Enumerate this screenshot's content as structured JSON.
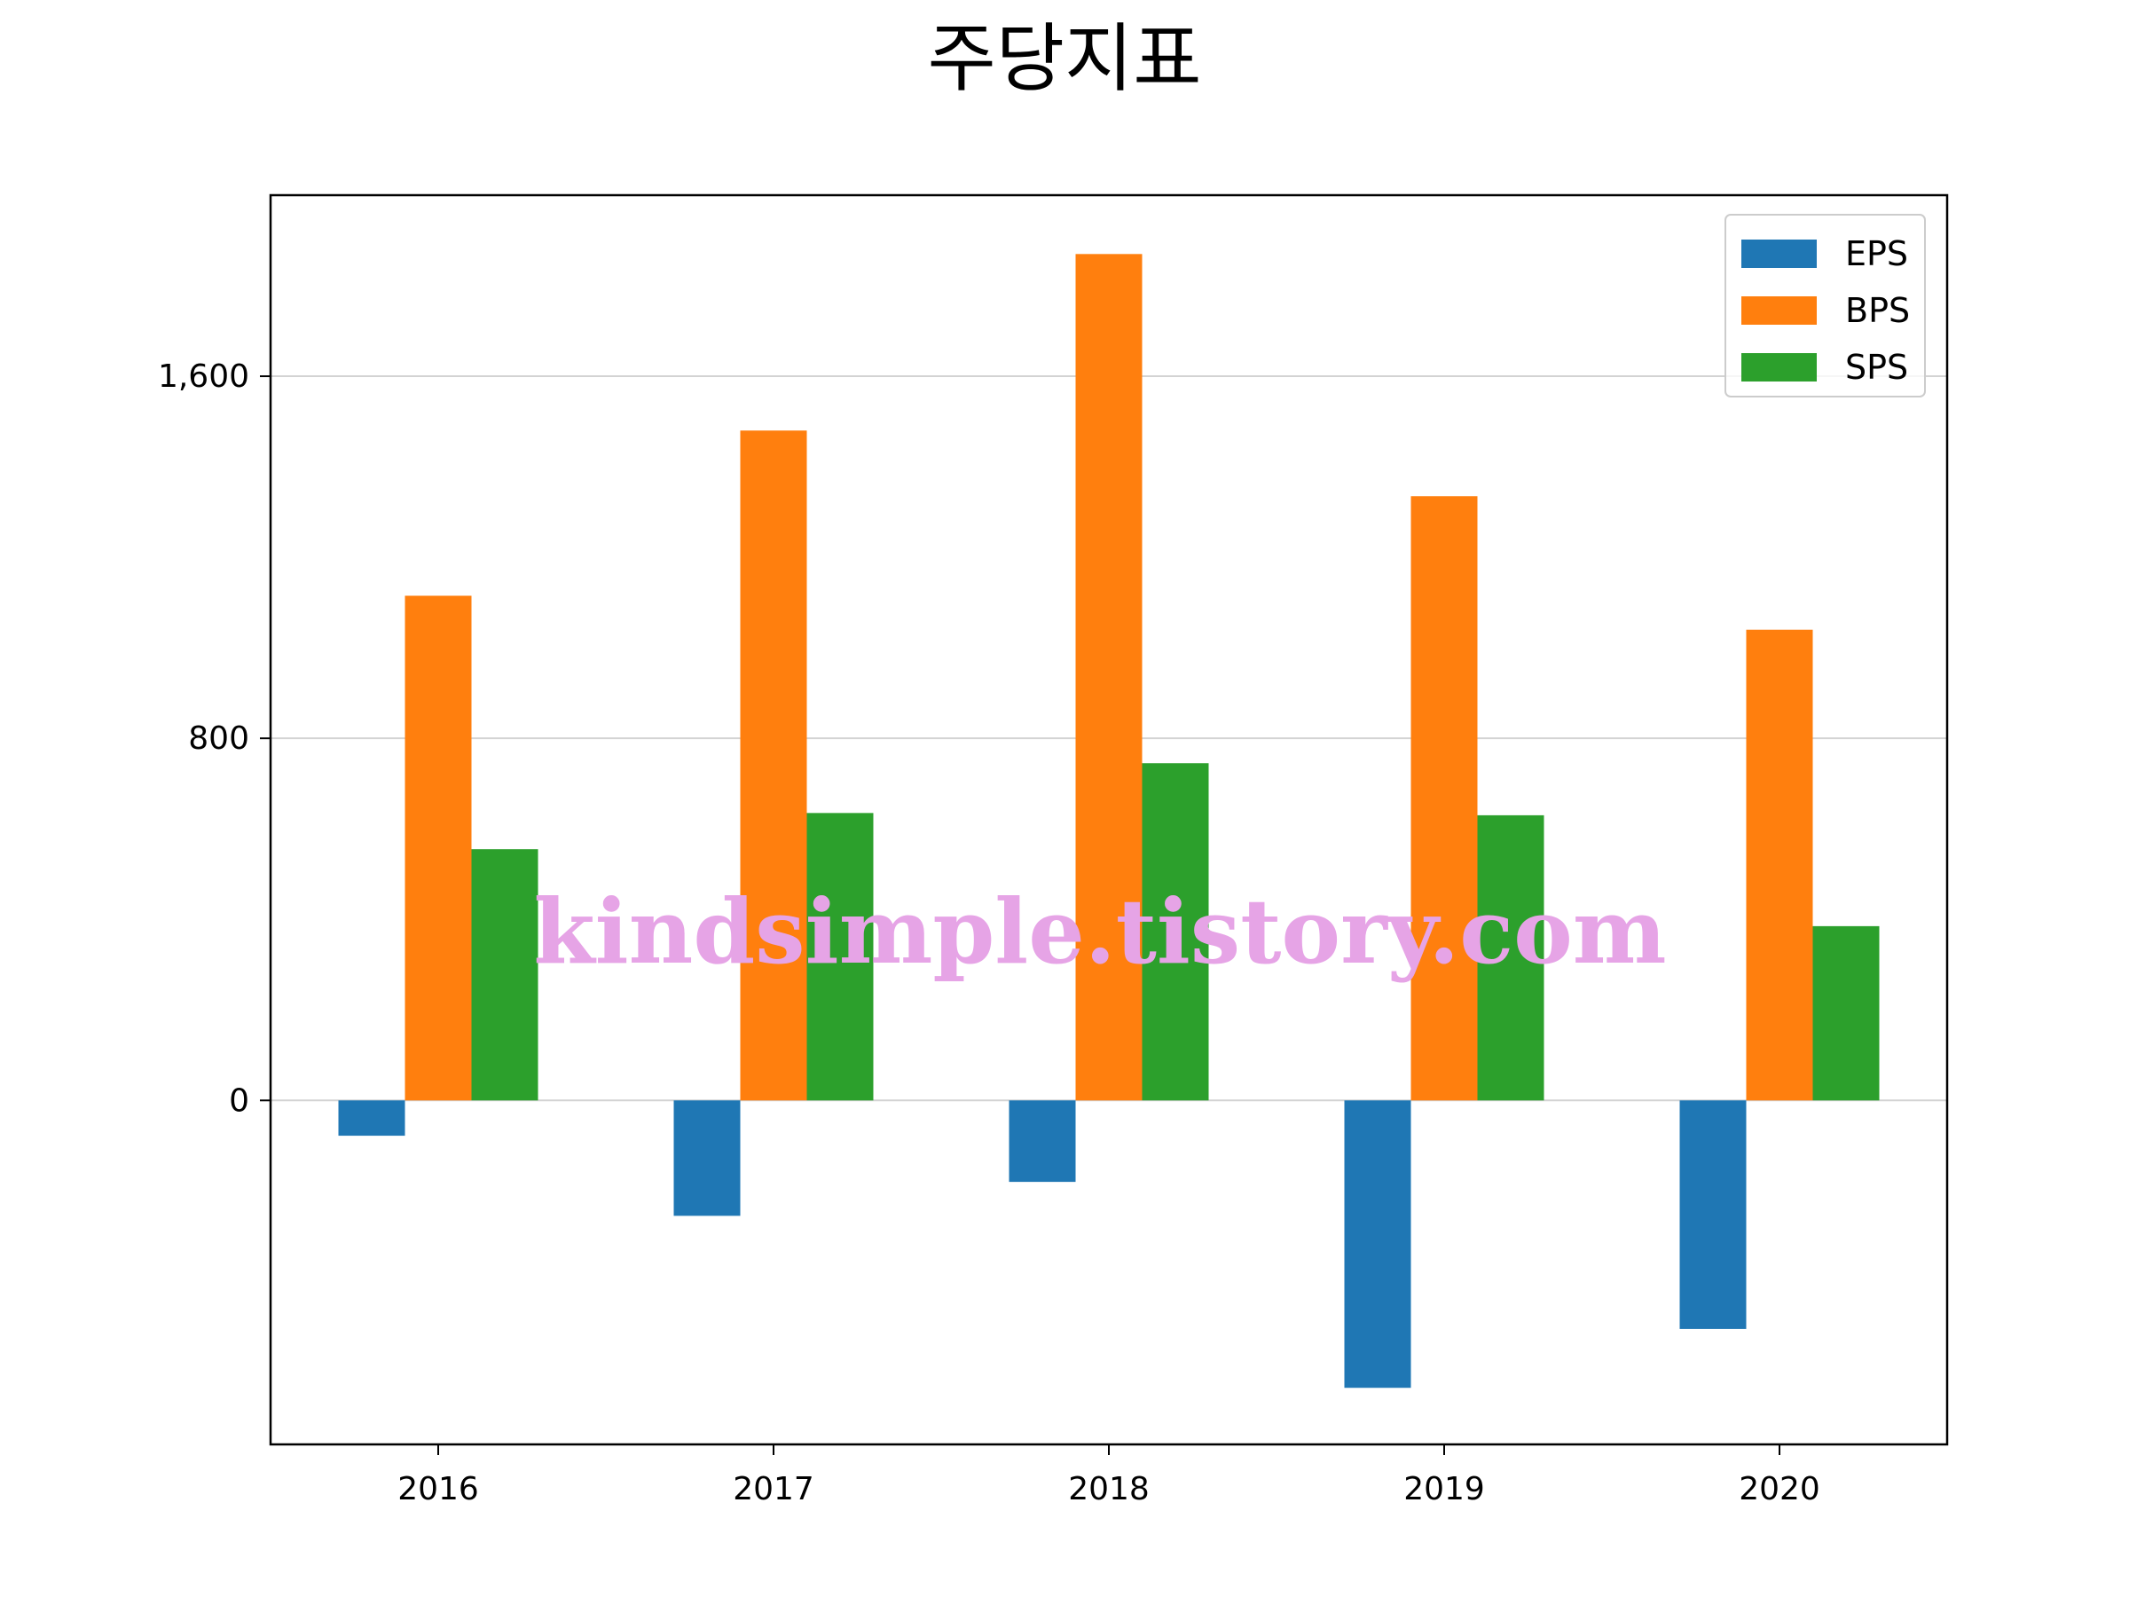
{
  "chart_data": {
    "type": "bar",
    "title": "주당지표",
    "xlabel": "",
    "ylabel": "",
    "categories": [
      "2016",
      "2017",
      "2018",
      "2019",
      "2020"
    ],
    "series": [
      {
        "name": "EPS",
        "color": "#1f77b4",
        "values": [
          -78,
          -255,
          -180,
          -635,
          -505
        ]
      },
      {
        "name": "BPS",
        "color": "#ff7f0e",
        "values": [
          1115,
          1480,
          1870,
          1335,
          1040
        ]
      },
      {
        "name": "SPS",
        "color": "#2ca02c",
        "values": [
          555,
          635,
          745,
          630,
          385
        ]
      }
    ],
    "ylim": [
      -760,
      2000
    ],
    "yticks": [
      0,
      800,
      1600
    ],
    "ytick_labels": [
      "0",
      "800",
      "1,600"
    ],
    "grid": "y",
    "legend": "top-right",
    "watermark": "kindsimple.tistory.com"
  }
}
